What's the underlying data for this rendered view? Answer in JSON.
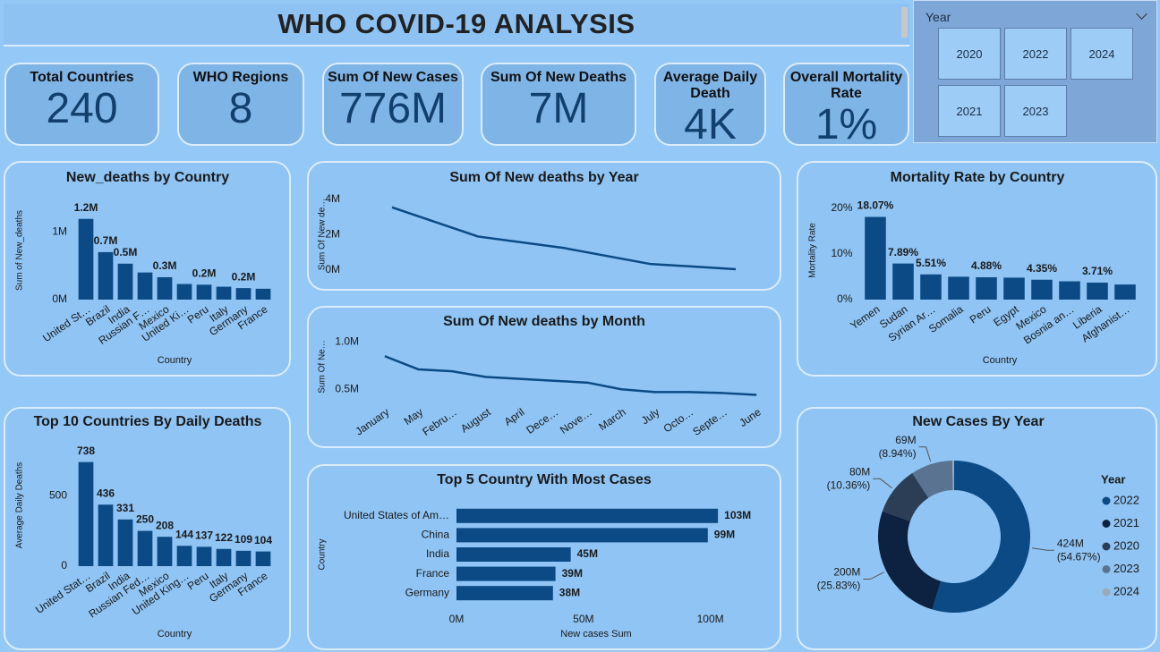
{
  "header": {
    "title": "WHO COVID-19 ANALYSIS"
  },
  "kpis": [
    {
      "label": "Total Countries",
      "value": "240"
    },
    {
      "label": "WHO Regions",
      "value": "8"
    },
    {
      "label": "Sum Of New Cases",
      "value": "776M"
    },
    {
      "label": "Sum Of New Deaths",
      "value": "7M"
    },
    {
      "label": "Average Daily Death",
      "value": "4K"
    },
    {
      "label": "Overall Mortality Rate",
      "value": "1%"
    }
  ],
  "slicer": {
    "title": "Year",
    "options": [
      "2020",
      "2021",
      "2022",
      "2023",
      "2024"
    ]
  },
  "chart_data": [
    {
      "type": "bar",
      "title": "New_deaths by Country",
      "x_label": "Country",
      "y_label": "Sum of New_deaths",
      "categories": [
        "United St…",
        "Brazil",
        "India",
        "Russian F…",
        "Mexico",
        "United Ki…",
        "Peru",
        "Italy",
        "Germany",
        "France"
      ],
      "values": [
        1190000,
        700000,
        530000,
        400000,
        330000,
        230000,
        220000,
        190000,
        170000,
        160000
      ],
      "value_labels": [
        "1.2M",
        "0.7M",
        "0.5M",
        null,
        "0.3M",
        null,
        "0.2M",
        null,
        "0.2M",
        null
      ],
      "color": "#0b4a85",
      "ylim": [
        0,
        1450000
      ],
      "yticks": [
        {
          "value": 0,
          "label": "0M"
        },
        {
          "value": 1000000,
          "label": "1M"
        }
      ]
    },
    {
      "type": "line",
      "title": "Sum Of New deaths by Year",
      "y_label": "Sum Of New de…",
      "categories": [
        null,
        null,
        null,
        null,
        null
      ],
      "values": [
        3550000,
        1900000,
        1250000,
        350000,
        50000
      ],
      "color": "#0b4a85",
      "ylim": [
        0,
        4400000
      ],
      "yticks": [
        {
          "value": 0,
          "label": "0M"
        },
        {
          "value": 2000000,
          "label": "2M"
        },
        {
          "value": 4000000,
          "label": "4M"
        }
      ]
    },
    {
      "type": "line",
      "title": "Sum Of New deaths by Month",
      "y_label": "Sum Of Ne…",
      "categories": [
        "January",
        "May",
        "Febru…",
        "August",
        "April",
        "Dece…",
        "Nove…",
        "March",
        "July",
        "Octo…",
        "Septe…",
        "June"
      ],
      "values": [
        850000,
        710000,
        690000,
        630000,
        610000,
        590000,
        570000,
        500000,
        470000,
        470000,
        460000,
        440000
      ],
      "color": "#0b4a85",
      "ylim": [
        360000,
        1070000
      ],
      "yticks": [
        {
          "value": 500000,
          "label": "0.5M"
        },
        {
          "value": 1000000,
          "label": "1.0M"
        }
      ]
    },
    {
      "type": "bar",
      "title": "Mortality Rate by Country",
      "x_label": "Country",
      "y_label": "Mortality Rate",
      "categories": [
        "Yemen",
        "Sudan",
        "Syrian Ar…",
        "Somalia",
        "Peru",
        "Egypt",
        "Mexico",
        "Bosnia an…",
        "Liberia",
        "Afghanist…"
      ],
      "values": [
        18.07,
        7.89,
        5.51,
        5.0,
        4.88,
        4.8,
        4.35,
        4.0,
        3.71,
        3.3
      ],
      "value_labels": [
        "18.07%",
        "7.89%",
        "5.51%",
        null,
        "4.88%",
        null,
        "4.35%",
        null,
        "3.71%",
        null
      ],
      "color": "#0b4a85",
      "ylim": [
        0,
        21.5
      ],
      "yticks": [
        {
          "value": 0,
          "label": "0%"
        },
        {
          "value": 10,
          "label": "10%"
        },
        {
          "value": 20,
          "label": "20%"
        }
      ]
    },
    {
      "type": "bar",
      "title": "Top 10 Countries By Daily Deaths",
      "x_label": "Country",
      "y_label": "Average Daily Deaths",
      "categories": [
        "United Stat…",
        "Brazil",
        "India",
        "Russian Fed…",
        "Mexico",
        "United King…",
        "Peru",
        "Italy",
        "Germany",
        "France"
      ],
      "values": [
        738,
        436,
        331,
        250,
        208,
        144,
        137,
        122,
        109,
        104
      ],
      "color": "#0b4a85",
      "ylim": [
        0,
        780
      ],
      "yticks": [
        0,
        500
      ]
    },
    {
      "type": "hbar",
      "title": "Top 5 Country With Most Cases",
      "x_label": "New cases Sum",
      "y_label": "Country",
      "categories": [
        "United States of Am…",
        "China",
        "India",
        "France",
        "Germany"
      ],
      "values": [
        103000000,
        99000000,
        45000000,
        39000000,
        38000000
      ],
      "value_labels": [
        "103M",
        "99M",
        "45M",
        "39M",
        "38M"
      ],
      "color": "#0b4a85",
      "xlim": [
        0,
        110000000
      ],
      "xticks": [
        {
          "value": 0,
          "label": "0M"
        },
        {
          "value": 50000000,
          "label": "50M"
        },
        {
          "value": 100000000,
          "label": "100M"
        }
      ]
    },
    {
      "type": "donut",
      "title": "New Cases By Year",
      "legend_title": "Year",
      "categories": [
        "2022",
        "2021",
        "2020",
        "2023",
        "2024"
      ],
      "values": [
        424000000,
        200000000,
        80000000,
        69000000,
        3000000
      ],
      "value_labels": [
        "424M",
        "200M",
        "80M",
        "69M",
        null
      ],
      "percent_labels": [
        "(54.67%)",
        "(25.83%)",
        "(10.36%)",
        "(8.94%)",
        null
      ],
      "colors": [
        "#0b4a85",
        "#0d2240",
        "#2c3e55",
        "#5a7390",
        "#9aa9ba"
      ]
    }
  ]
}
